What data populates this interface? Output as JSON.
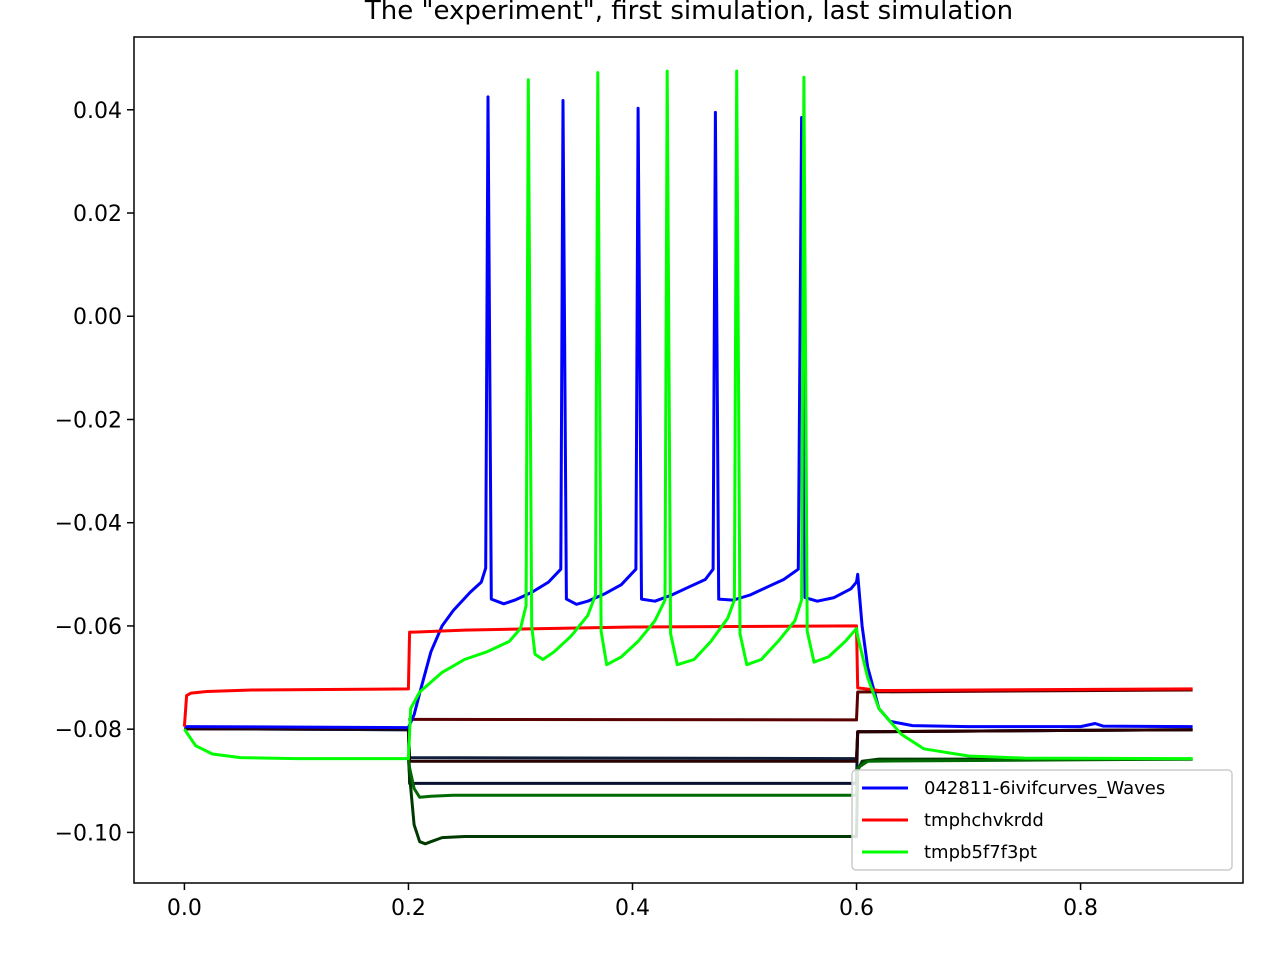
{
  "chart_data": {
    "type": "line",
    "title": "The \"experiment\", first simulation, last simulation",
    "xlabel": "",
    "ylabel": "",
    "xlim": [
      -0.045,
      0.945
    ],
    "ylim": [
      -0.1098,
      0.0541
    ],
    "x_ticks": [
      0.0,
      0.2,
      0.4,
      0.6,
      0.8
    ],
    "x_tick_labels": [
      "0.0",
      "0.2",
      "0.4",
      "0.6",
      "0.8"
    ],
    "y_ticks": [
      0.04,
      0.02,
      0.0,
      -0.02,
      -0.04,
      -0.06,
      -0.08,
      -0.1
    ],
    "y_tick_labels": [
      "0.04",
      "0.02",
      "0.00",
      "−0.02",
      "−0.04",
      "−0.06",
      "−0.08",
      "−0.10"
    ],
    "grid": false,
    "legend_position": "lower-right",
    "legend": [
      {
        "name": "042811-6ivifcurves_Waves",
        "color": "#0000ff"
      },
      {
        "name": "tmphchvkrdd",
        "color": "#ff0000"
      },
      {
        "name": "tmpb5f7f3pt",
        "color": "#00ff00"
      }
    ],
    "series": [
      {
        "name": "",
        "color": "#0f1f3a",
        "points": [
          [
            0.0,
            -0.0799
          ],
          [
            0.2,
            -0.0801
          ],
          [
            0.201,
            -0.0855
          ],
          [
            0.6,
            -0.0857
          ],
          [
            0.601,
            -0.0805
          ],
          [
            0.9,
            -0.0801
          ]
        ]
      },
      {
        "name": "",
        "color": "#0a1232",
        "points": [
          [
            0.0,
            -0.0799
          ],
          [
            0.2,
            -0.0801
          ],
          [
            0.201,
            -0.0905
          ],
          [
            0.6,
            -0.0905
          ],
          [
            0.601,
            -0.0805
          ],
          [
            0.9,
            -0.0801
          ]
        ]
      },
      {
        "name": "",
        "color": "#2a0000",
        "points": [
          [
            0.0,
            -0.0799
          ],
          [
            0.2,
            -0.0799
          ],
          [
            0.201,
            -0.0862
          ],
          [
            0.6,
            -0.0862
          ],
          [
            0.601,
            -0.0805
          ],
          [
            0.9,
            -0.0801
          ]
        ]
      },
      {
        "name": "",
        "color": "#5a0000",
        "points": [
          [
            0.2,
            -0.0781
          ],
          [
            0.6,
            -0.0782
          ],
          [
            0.601,
            -0.0728
          ],
          [
            0.9,
            -0.0724
          ]
        ]
      },
      {
        "name": "",
        "color": "#003a00",
        "points": [
          [
            0.2,
            -0.0858
          ],
          [
            0.201,
            -0.089
          ],
          [
            0.205,
            -0.0985
          ],
          [
            0.21,
            -0.1018
          ],
          [
            0.215,
            -0.1022
          ],
          [
            0.22,
            -0.1018
          ],
          [
            0.23,
            -0.101
          ],
          [
            0.25,
            -0.1008
          ],
          [
            0.6,
            -0.1008
          ],
          [
            0.601,
            -0.088
          ],
          [
            0.605,
            -0.0862
          ],
          [
            0.62,
            -0.0858
          ],
          [
            0.9,
            -0.0858
          ]
        ]
      },
      {
        "name": "",
        "color": "#006a00",
        "points": [
          [
            0.2,
            -0.0858
          ],
          [
            0.201,
            -0.0875
          ],
          [
            0.205,
            -0.0915
          ],
          [
            0.21,
            -0.0932
          ],
          [
            0.22,
            -0.093
          ],
          [
            0.24,
            -0.0928
          ],
          [
            0.6,
            -0.0928
          ],
          [
            0.601,
            -0.0875
          ],
          [
            0.61,
            -0.0862
          ],
          [
            0.9,
            -0.0858
          ]
        ]
      },
      {
        "name": "042811-6ivifcurves_Waves",
        "color": "#0000ff",
        "points": [
          [
            0.0,
            -0.0795
          ],
          [
            0.2,
            -0.0797
          ],
          [
            0.205,
            -0.0772
          ],
          [
            0.21,
            -0.073
          ],
          [
            0.22,
            -0.065
          ],
          [
            0.23,
            -0.06
          ],
          [
            0.24,
            -0.057
          ],
          [
            0.255,
            -0.0535
          ],
          [
            0.265,
            -0.0515
          ],
          [
            0.269,
            -0.0488
          ],
          [
            0.271,
            0.0425
          ],
          [
            0.274,
            -0.0548
          ],
          [
            0.285,
            -0.0557
          ],
          [
            0.295,
            -0.055
          ],
          [
            0.31,
            -0.0535
          ],
          [
            0.325,
            -0.0515
          ],
          [
            0.336,
            -0.049
          ],
          [
            0.338,
            0.0418
          ],
          [
            0.341,
            -0.0548
          ],
          [
            0.35,
            -0.0558
          ],
          [
            0.36,
            -0.0552
          ],
          [
            0.375,
            -0.0538
          ],
          [
            0.39,
            -0.052
          ],
          [
            0.403,
            -0.049
          ],
          [
            0.405,
            0.0403
          ],
          [
            0.408,
            -0.0548
          ],
          [
            0.42,
            -0.0552
          ],
          [
            0.435,
            -0.054
          ],
          [
            0.45,
            -0.0525
          ],
          [
            0.465,
            -0.051
          ],
          [
            0.472,
            -0.049
          ],
          [
            0.474,
            0.0395
          ],
          [
            0.477,
            -0.0548
          ],
          [
            0.49,
            -0.055
          ],
          [
            0.505,
            -0.054
          ],
          [
            0.52,
            -0.0525
          ],
          [
            0.535,
            -0.051
          ],
          [
            0.548,
            -0.049
          ],
          [
            0.551,
            0.0385
          ],
          [
            0.554,
            -0.0545
          ],
          [
            0.565,
            -0.0552
          ],
          [
            0.58,
            -0.0545
          ],
          [
            0.595,
            -0.0528
          ],
          [
            0.6,
            -0.0515
          ],
          [
            0.601,
            -0.05
          ],
          [
            0.605,
            -0.06
          ],
          [
            0.61,
            -0.068
          ],
          [
            0.62,
            -0.076
          ],
          [
            0.63,
            -0.0785
          ],
          [
            0.65,
            -0.0793
          ],
          [
            0.7,
            -0.0795
          ],
          [
            0.8,
            -0.0795
          ],
          [
            0.813,
            -0.0789
          ],
          [
            0.82,
            -0.0794
          ],
          [
            0.9,
            -0.0795
          ]
        ]
      },
      {
        "name": "tmphchvkrdd",
        "color": "#ff0000",
        "points": [
          [
            0.0,
            -0.0795
          ],
          [
            0.002,
            -0.0735
          ],
          [
            0.006,
            -0.073
          ],
          [
            0.02,
            -0.0727
          ],
          [
            0.06,
            -0.0724
          ],
          [
            0.2,
            -0.0722
          ],
          [
            0.201,
            -0.0612
          ],
          [
            0.205,
            -0.0612
          ],
          [
            0.25,
            -0.0608
          ],
          [
            0.4,
            -0.0602
          ],
          [
            0.6,
            -0.06
          ],
          [
            0.601,
            -0.072
          ],
          [
            0.62,
            -0.0725
          ],
          [
            0.9,
            -0.0722
          ]
        ]
      },
      {
        "name": "tmpb5f7f3pt",
        "color": "#00ff00",
        "points": [
          [
            0.0,
            -0.08
          ],
          [
            0.01,
            -0.0832
          ],
          [
            0.025,
            -0.0848
          ],
          [
            0.05,
            -0.0855
          ],
          [
            0.1,
            -0.0857
          ],
          [
            0.2,
            -0.0857
          ],
          [
            0.202,
            -0.076
          ],
          [
            0.21,
            -0.0728
          ],
          [
            0.23,
            -0.069
          ],
          [
            0.25,
            -0.0665
          ],
          [
            0.27,
            -0.065
          ],
          [
            0.29,
            -0.063
          ],
          [
            0.3,
            -0.0605
          ],
          [
            0.305,
            -0.056
          ],
          [
            0.307,
            0.0458
          ],
          [
            0.31,
            -0.06
          ],
          [
            0.313,
            -0.0655
          ],
          [
            0.32,
            -0.0665
          ],
          [
            0.33,
            -0.065
          ],
          [
            0.345,
            -0.062
          ],
          [
            0.36,
            -0.058
          ],
          [
            0.367,
            -0.054
          ],
          [
            0.369,
            0.0472
          ],
          [
            0.372,
            -0.061
          ],
          [
            0.377,
            -0.0675
          ],
          [
            0.39,
            -0.066
          ],
          [
            0.405,
            -0.063
          ],
          [
            0.42,
            -0.059
          ],
          [
            0.429,
            -0.055
          ],
          [
            0.431,
            0.0475
          ],
          [
            0.434,
            -0.0615
          ],
          [
            0.44,
            -0.0675
          ],
          [
            0.455,
            -0.0665
          ],
          [
            0.47,
            -0.063
          ],
          [
            0.485,
            -0.0585
          ],
          [
            0.491,
            -0.055
          ],
          [
            0.493,
            0.0475
          ],
          [
            0.496,
            -0.0615
          ],
          [
            0.502,
            -0.0675
          ],
          [
            0.515,
            -0.0665
          ],
          [
            0.53,
            -0.063
          ],
          [
            0.545,
            -0.059
          ],
          [
            0.551,
            -0.055
          ],
          [
            0.553,
            0.0463
          ],
          [
            0.556,
            -0.061
          ],
          [
            0.562,
            -0.067
          ],
          [
            0.575,
            -0.066
          ],
          [
            0.59,
            -0.063
          ],
          [
            0.6,
            -0.0605
          ],
          [
            0.601,
            -0.062
          ],
          [
            0.61,
            -0.07
          ],
          [
            0.62,
            -0.076
          ],
          [
            0.64,
            -0.081
          ],
          [
            0.66,
            -0.0838
          ],
          [
            0.7,
            -0.0852
          ],
          [
            0.75,
            -0.0856
          ],
          [
            0.9,
            -0.0857
          ]
        ]
      }
    ]
  }
}
